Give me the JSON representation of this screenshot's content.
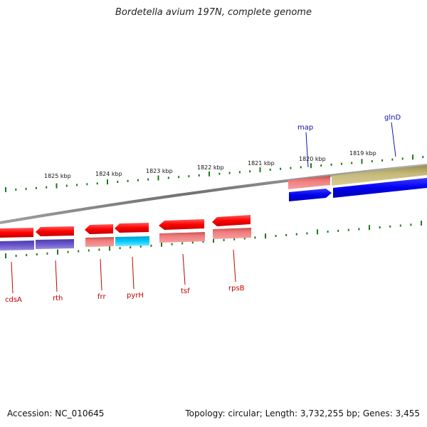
{
  "title": "Bordetella avium 197N, complete genome",
  "footer": {
    "accession": "Accession: NC_010645",
    "summary": "Topology: circular; Length: 3,732,255 bp; Genes: 3,455"
  },
  "scale_labels": [
    "1825 kbp",
    "1824 kbp",
    "1823 kbp",
    "1822 kbp",
    "1821 kbp",
    "1820 kbp",
    "1819 kbp"
  ],
  "genes_top": [
    {
      "name": "map",
      "color": "#1010b0"
    },
    {
      "name": "glnD",
      "color": "#1010b0"
    }
  ],
  "genes_bottom": [
    {
      "name": "cdsA",
      "color": "#c00000"
    },
    {
      "name": "rth",
      "color": "#c00000"
    },
    {
      "name": "frr",
      "color": "#c00000"
    },
    {
      "name": "pyrH",
      "color": "#c00000"
    },
    {
      "name": "tsf",
      "color": "#c00000"
    },
    {
      "name": "rpsB",
      "color": "#c00000"
    }
  ],
  "colors": {
    "forward_cds": "#ff0000",
    "reverse_cds": "#ff0000",
    "backbone": "#808080",
    "tick": "#1a7a1a",
    "blue_feature": "#0000ee",
    "olive_feature": "#c4b878",
    "pink_feature": "#f08080",
    "purple_feature": "#6a5acd",
    "cyan_feature": "#00bfff"
  }
}
